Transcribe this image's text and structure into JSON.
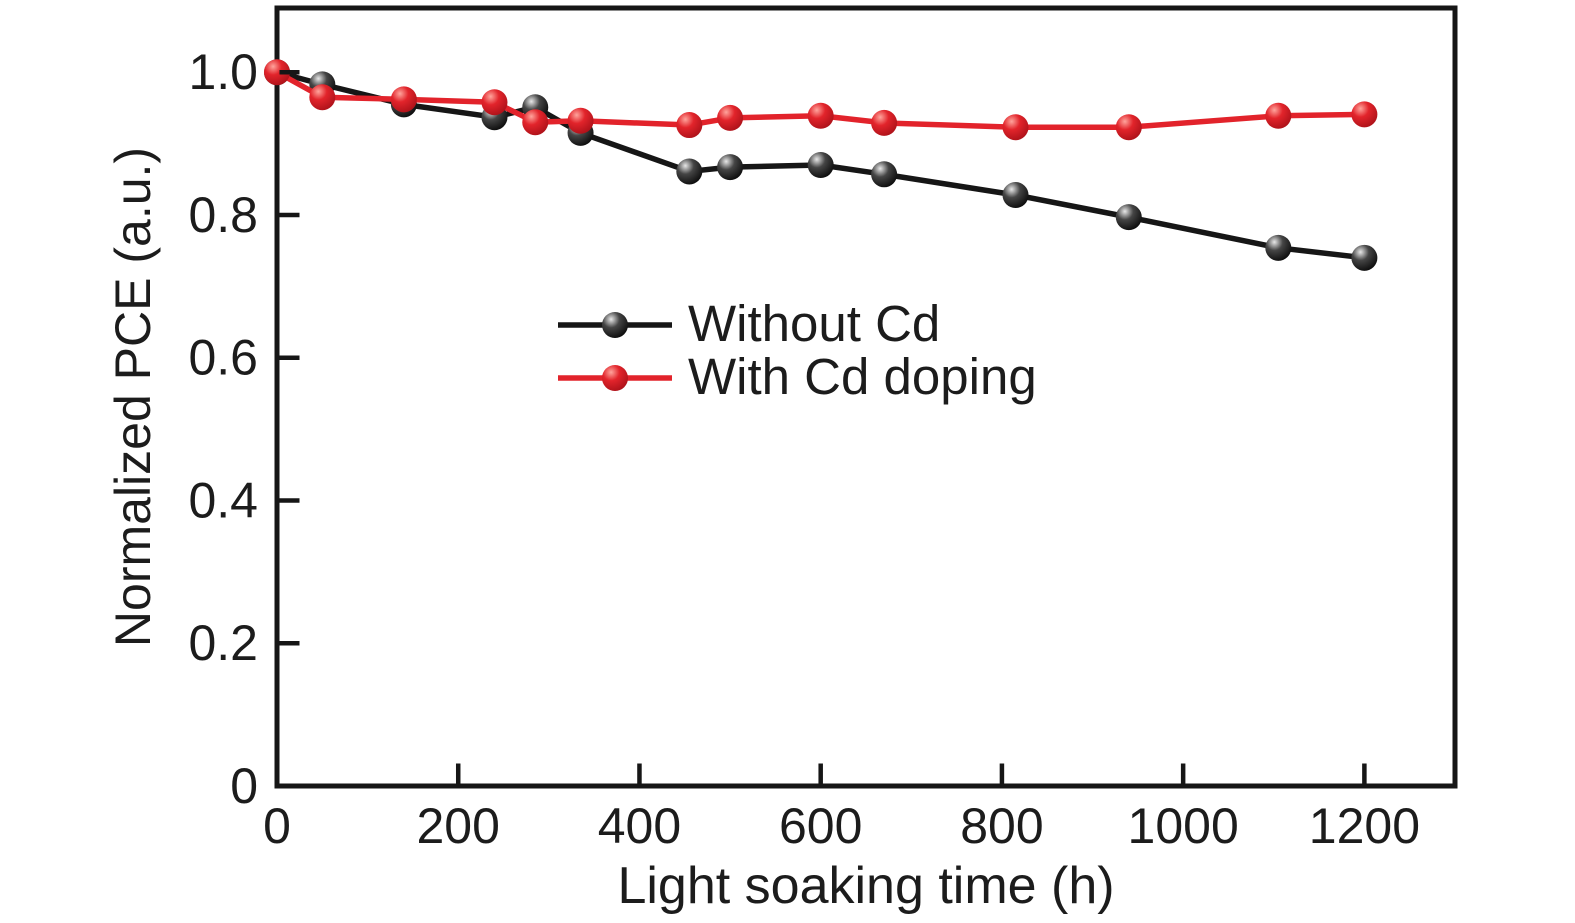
{
  "figure": {
    "background_color": "#ffffff",
    "axis_color": "#161616",
    "text_color": "#1c1c1c"
  },
  "chart_data": {
    "type": "line",
    "title": "",
    "xlabel": "Light soaking time (h)",
    "ylabel": "Normalized PCE (a.u.)",
    "xlim": [
      0,
      1300
    ],
    "ylim": [
      0,
      1.09
    ],
    "grid": false,
    "legend_position": "inside center-left",
    "x_ticks": [
      0,
      200,
      400,
      600,
      800,
      1000,
      1200
    ],
    "x_tick_labels": [
      "0",
      "200",
      "400",
      "600",
      "800",
      "1000",
      "1200"
    ],
    "y_ticks": [
      0,
      0.2,
      0.4,
      0.6,
      0.8,
      1.0
    ],
    "y_tick_labels": [
      "0",
      "0.2",
      "0.4",
      "0.6",
      "0.8",
      "1.0"
    ],
    "x": [
      0,
      50,
      140,
      240,
      285,
      335,
      455,
      500,
      600,
      670,
      815,
      940,
      1105,
      1200
    ],
    "series": [
      {
        "name": "Without Cd",
        "color": "#161616",
        "marker": "sphere-black",
        "values": [
          1.0,
          0.983,
          0.955,
          0.937,
          0.951,
          0.915,
          0.861,
          0.867,
          0.87,
          0.857,
          0.828,
          0.797,
          0.754,
          0.74
        ]
      },
      {
        "name": "With Cd doping",
        "color": "#e2232b",
        "marker": "sphere-red",
        "values": [
          1.0,
          0.965,
          0.962,
          0.958,
          0.93,
          0.932,
          0.926,
          0.936,
          0.939,
          0.929,
          0.923,
          0.923,
          0.939,
          0.941
        ]
      }
    ]
  }
}
